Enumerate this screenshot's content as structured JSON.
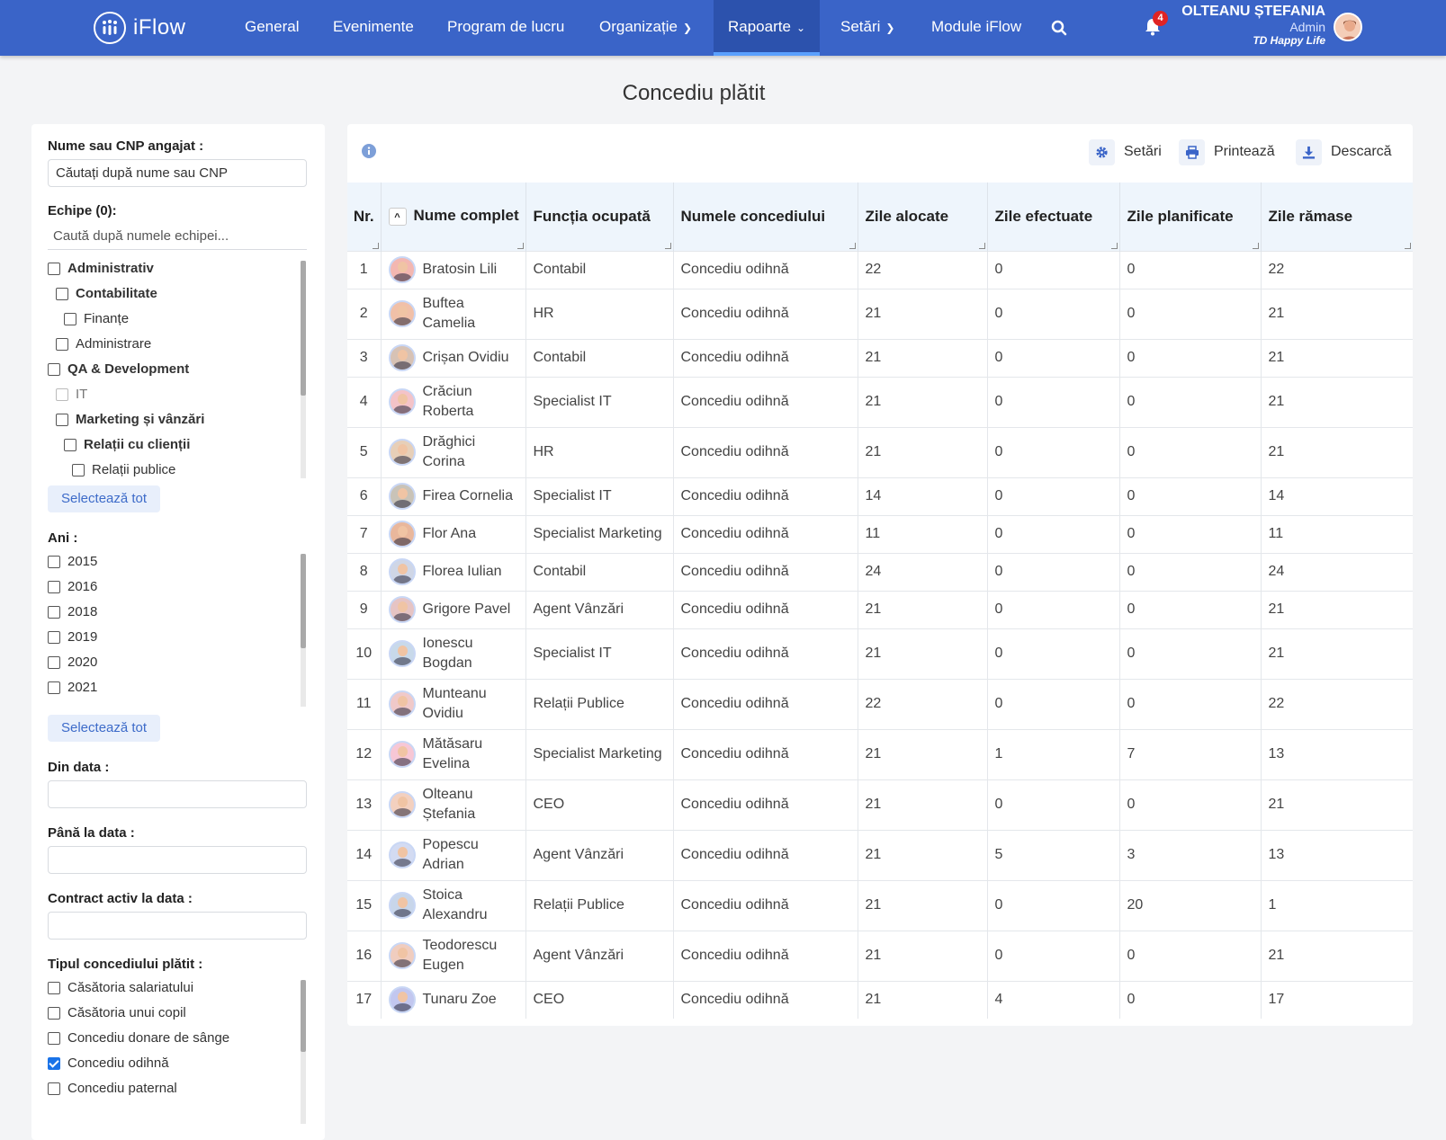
{
  "header": {
    "brand": "iFlow",
    "nav": [
      {
        "label": "General"
      },
      {
        "label": "Evenimente"
      },
      {
        "label": "Program de lucru"
      },
      {
        "label": "Organizație"
      },
      {
        "label": "Rapoarte"
      },
      {
        "label": "Setări"
      },
      {
        "label": "Module iFlow"
      }
    ],
    "notifications": "4",
    "user": {
      "name": "OLTEANU ȘTEFANIA",
      "role": "Admin",
      "company": "TD Happy Life"
    }
  },
  "page": {
    "title": "Concediu plătit"
  },
  "filters": {
    "name_label": "Nume sau CNP angajat :",
    "name_placeholder": "Căutați după nume sau CNP",
    "teams_label": "Echipe (0):",
    "teams_placeholder": "Caută după numele echipei...",
    "teams": [
      {
        "label": "Administrativ"
      },
      {
        "label": "Contabilitate"
      },
      {
        "label": "Finanțe"
      },
      {
        "label": "Administrare"
      },
      {
        "label": "QA & Development"
      },
      {
        "label": "IT"
      },
      {
        "label": "Marketing și vânzări"
      },
      {
        "label": "Relații cu clienții"
      },
      {
        "label": "Relații publice"
      }
    ],
    "select_all": "Selectează tot",
    "years_label": "Ani :",
    "years": [
      "2015",
      "2016",
      "2018",
      "2019",
      "2020",
      "2021"
    ],
    "from_label": "Din data :",
    "to_label": "Până la data :",
    "contract_label": "Contract activ la data :",
    "leave_type_label": "Tipul concediului plătit :",
    "leave_types": [
      {
        "label": "Căsătoria salariatului",
        "checked": false
      },
      {
        "label": "Căsătoria unui copil",
        "checked": false
      },
      {
        "label": "Concediu donare de sânge",
        "checked": false
      },
      {
        "label": "Concediu odihnă",
        "checked": true
      },
      {
        "label": "Concediu paternal",
        "checked": false
      }
    ]
  },
  "toolbar": {
    "settings": "Setări",
    "print": "Printează",
    "download": "Descarcă"
  },
  "table": {
    "columns": [
      "Nr.",
      "Nume complet",
      "Funcția ocupată",
      "Numele concediului",
      "Zile alocate",
      "Zile efectuate",
      "Zile planificate",
      "Zile rămase"
    ],
    "rows": [
      {
        "nr": "1",
        "name": "Bratosin Lili",
        "role": "Contabil",
        "leave": "Concediu odihnă",
        "allocated": "22",
        "taken": "0",
        "planned": "0",
        "remaining": "22"
      },
      {
        "nr": "2",
        "name": "Buftea Camelia",
        "role": "HR",
        "leave": "Concediu odihnă",
        "allocated": "21",
        "taken": "0",
        "planned": "0",
        "remaining": "21"
      },
      {
        "nr": "3",
        "name": "Crișan Ovidiu",
        "role": "Contabil",
        "leave": "Concediu odihnă",
        "allocated": "21",
        "taken": "0",
        "planned": "0",
        "remaining": "21"
      },
      {
        "nr": "4",
        "name": "Crăciun Roberta",
        "role": "Specialist IT",
        "leave": "Concediu odihnă",
        "allocated": "21",
        "taken": "0",
        "planned": "0",
        "remaining": "21"
      },
      {
        "nr": "5",
        "name": "Drăghici Corina",
        "role": "HR",
        "leave": "Concediu odihnă",
        "allocated": "21",
        "taken": "0",
        "planned": "0",
        "remaining": "21"
      },
      {
        "nr": "6",
        "name": "Firea Cornelia",
        "role": "Specialist IT",
        "leave": "Concediu odihnă",
        "allocated": "14",
        "taken": "0",
        "planned": "0",
        "remaining": "14"
      },
      {
        "nr": "7",
        "name": "Flor Ana",
        "role": "Specialist Marketing",
        "leave": "Concediu odihnă",
        "allocated": "11",
        "taken": "0",
        "planned": "0",
        "remaining": "11"
      },
      {
        "nr": "8",
        "name": "Florea Iulian",
        "role": "Contabil",
        "leave": "Concediu odihnă",
        "allocated": "24",
        "taken": "0",
        "planned": "0",
        "remaining": "24"
      },
      {
        "nr": "9",
        "name": "Grigore Pavel",
        "role": "Agent Vânzări",
        "leave": "Concediu odihnă",
        "allocated": "21",
        "taken": "0",
        "planned": "0",
        "remaining": "21"
      },
      {
        "nr": "10",
        "name": "Ionescu Bogdan",
        "role": "Specialist IT",
        "leave": "Concediu odihnă",
        "allocated": "21",
        "taken": "0",
        "planned": "0",
        "remaining": "21"
      },
      {
        "nr": "11",
        "name": "Munteanu Ovidiu",
        "role": "Relații Publice",
        "leave": "Concediu odihnă",
        "allocated": "22",
        "taken": "0",
        "planned": "0",
        "remaining": "22"
      },
      {
        "nr": "12",
        "name": "Mătăsaru Evelina",
        "role": "Specialist Marketing",
        "leave": "Concediu odihnă",
        "allocated": "21",
        "taken": "1",
        "planned": "7",
        "remaining": "13"
      },
      {
        "nr": "13",
        "name": "Olteanu Ștefania",
        "role": "CEO",
        "leave": "Concediu odihnă",
        "allocated": "21",
        "taken": "0",
        "planned": "0",
        "remaining": "21"
      },
      {
        "nr": "14",
        "name": "Popescu Adrian",
        "role": "Agent Vânzări",
        "leave": "Concediu odihnă",
        "allocated": "21",
        "taken": "5",
        "planned": "3",
        "remaining": "13"
      },
      {
        "nr": "15",
        "name": "Stoica Alexandru",
        "role": "Relații Publice",
        "leave": "Concediu odihnă",
        "allocated": "21",
        "taken": "0",
        "planned": "20",
        "remaining": "1"
      },
      {
        "nr": "16",
        "name": "Teodorescu Eugen",
        "role": "Agent Vânzări",
        "leave": "Concediu odihnă",
        "allocated": "21",
        "taken": "0",
        "planned": "0",
        "remaining": "21"
      },
      {
        "nr": "17",
        "name": "Tunaru Zoe",
        "role": "CEO",
        "leave": "Concediu odihnă",
        "allocated": "21",
        "taken": "4",
        "planned": "0",
        "remaining": "17"
      }
    ]
  }
}
